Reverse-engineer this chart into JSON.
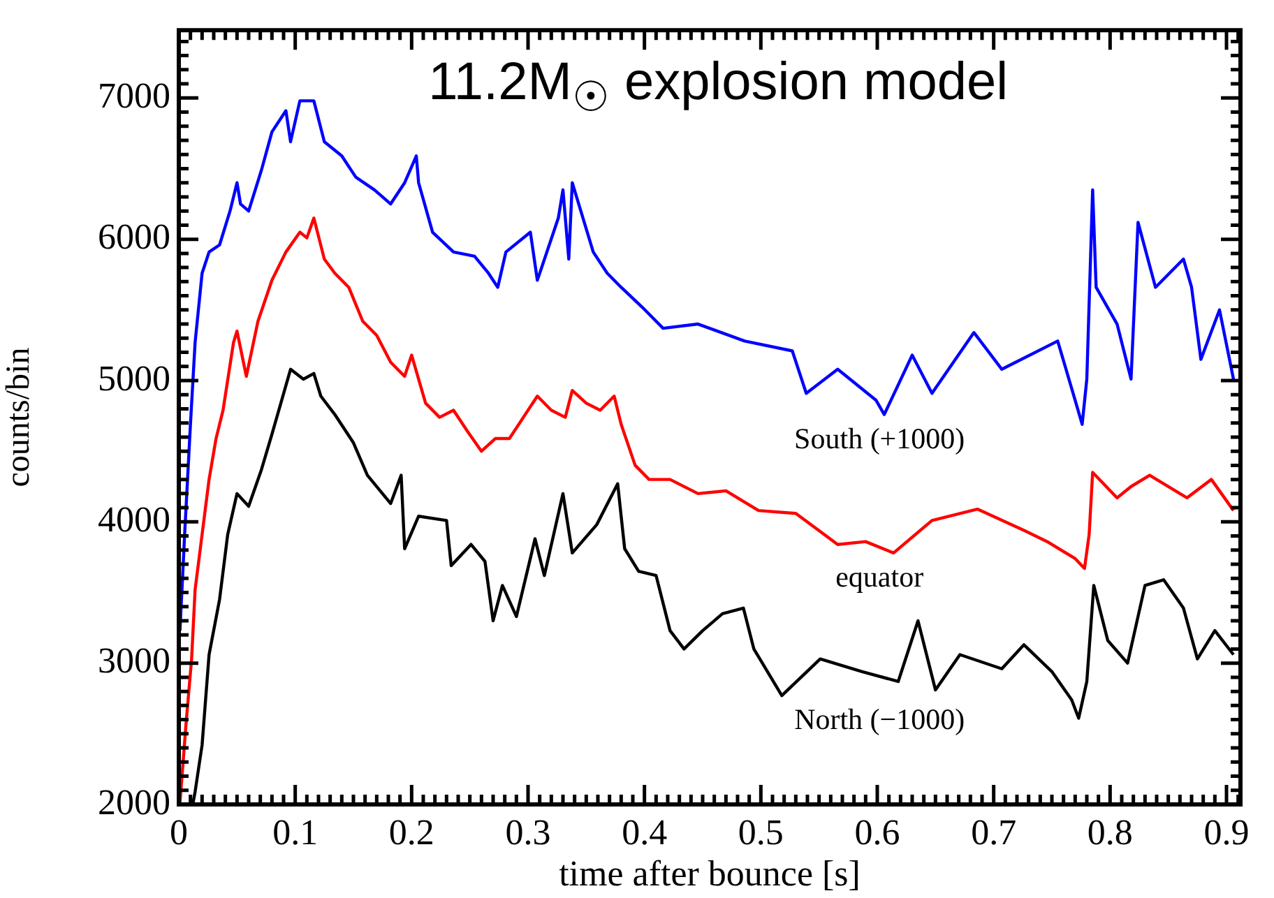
{
  "chart_data": {
    "type": "line",
    "title": "11.2M$_{☉}$ explosion model",
    "xlabel": "time after bounce [s]",
    "ylabel": "counts/bin",
    "xlim": [
      0,
      0.912
    ],
    "ylim": [
      2000,
      7480
    ],
    "xticks": [
      0,
      {
        "value": 0.01,
        "label": null
      },
      {
        "value": 0.02,
        "label": null
      },
      {
        "value": 0.03,
        "label": null
      },
      {
        "value": 0.04,
        "label": null
      },
      {
        "value": 0.05,
        "label": null
      },
      {
        "value": 0.06,
        "label": null
      },
      {
        "value": 0.07,
        "label": null
      },
      {
        "value": 0.08,
        "label": null
      },
      {
        "value": 0.09,
        "label": null
      },
      0.1,
      {
        "value": 0.11,
        "label": null
      },
      {
        "value": 0.12,
        "label": null
      },
      {
        "value": 0.13,
        "label": null
      },
      {
        "value": 0.14,
        "label": null
      },
      {
        "value": 0.15,
        "label": null
      },
      {
        "value": 0.16,
        "label": null
      },
      {
        "value": 0.17,
        "label": null
      },
      {
        "value": 0.18,
        "label": null
      },
      {
        "value": 0.19,
        "label": null
      },
      0.2,
      {
        "value": 0.21,
        "label": null
      },
      {
        "value": 0.22,
        "label": null
      },
      {
        "value": 0.23,
        "label": null
      },
      {
        "value": 0.24,
        "label": null
      },
      {
        "value": 0.25,
        "label": null
      },
      {
        "value": 0.26,
        "label": null
      },
      {
        "value": 0.27,
        "label": null
      },
      {
        "value": 0.28,
        "label": null
      },
      {
        "value": 0.29,
        "label": null
      },
      0.3,
      {
        "value": 0.31,
        "label": null
      },
      {
        "value": 0.32,
        "label": null
      },
      {
        "value": 0.33,
        "label": null
      },
      {
        "value": 0.34,
        "label": null
      },
      {
        "value": 0.35,
        "label": null
      },
      {
        "value": 0.36,
        "label": null
      },
      {
        "value": 0.37,
        "label": null
      },
      {
        "value": 0.38,
        "label": null
      },
      {
        "value": 0.39,
        "label": null
      },
      0.4,
      {
        "value": 0.41,
        "label": null
      },
      {
        "value": 0.42,
        "label": null
      },
      {
        "value": 0.43,
        "label": null
      },
      {
        "value": 0.44,
        "label": null
      },
      {
        "value": 0.45,
        "label": null
      },
      {
        "value": 0.46,
        "label": null
      },
      {
        "value": 0.47,
        "label": null
      },
      {
        "value": 0.48,
        "label": null
      },
      {
        "value": 0.49,
        "label": null
      },
      0.5,
      {
        "value": 0.51,
        "label": null
      },
      {
        "value": 0.52,
        "label": null
      },
      {
        "value": 0.53,
        "label": null
      },
      {
        "value": 0.54,
        "label": null
      },
      {
        "value": 0.55,
        "label": null
      },
      {
        "value": 0.56,
        "label": null
      },
      {
        "value": 0.57,
        "label": null
      },
      {
        "value": 0.58,
        "label": null
      },
      {
        "value": 0.59,
        "label": null
      },
      0.6,
      {
        "value": 0.61,
        "label": null
      },
      {
        "value": 0.62,
        "label": null
      },
      {
        "value": 0.63,
        "label": null
      },
      {
        "value": 0.64,
        "label": null
      },
      {
        "value": 0.65,
        "label": null
      },
      {
        "value": 0.66,
        "label": null
      },
      {
        "value": 0.67,
        "label": null
      },
      {
        "value": 0.68,
        "label": null
      },
      {
        "value": 0.69,
        "label": null
      },
      0.7,
      {
        "value": 0.71,
        "label": null
      },
      {
        "value": 0.72,
        "label": null
      },
      {
        "value": 0.73,
        "label": null
      },
      {
        "value": 0.74,
        "label": null
      },
      {
        "value": 0.75,
        "label": null
      },
      {
        "value": 0.76,
        "label": null
      },
      {
        "value": 0.77,
        "label": null
      },
      {
        "value": 0.78,
        "label": null
      },
      {
        "value": 0.79,
        "label": null
      },
      0.8,
      {
        "value": 0.81,
        "label": null
      },
      {
        "value": 0.82,
        "label": null
      },
      {
        "value": 0.83,
        "label": null
      },
      {
        "value": 0.84,
        "label": null
      },
      {
        "value": 0.85,
        "label": null
      },
      {
        "value": 0.86,
        "label": null
      },
      {
        "value": 0.87,
        "label": null
      },
      {
        "value": 0.88,
        "label": null
      },
      {
        "value": 0.89,
        "label": null
      },
      0.9,
      {
        "value": 0.91,
        "label": null
      }
    ],
    "yticks": [
      2000,
      {
        "value": 2100,
        "label": null
      },
      {
        "value": 2200,
        "label": null
      },
      {
        "value": 2300,
        "label": null
      },
      {
        "value": 2400,
        "label": null
      },
      {
        "value": 2500,
        "label": null
      },
      {
        "value": 2600,
        "label": null
      },
      {
        "value": 2700,
        "label": null
      },
      {
        "value": 2800,
        "label": null
      },
      {
        "value": 2900,
        "label": null
      },
      3000,
      {
        "value": 3100,
        "label": null
      },
      {
        "value": 3200,
        "label": null
      },
      {
        "value": 3300,
        "label": null
      },
      {
        "value": 3400,
        "label": null
      },
      {
        "value": 3500,
        "label": null
      },
      {
        "value": 3600,
        "label": null
      },
      {
        "value": 3700,
        "label": null
      },
      {
        "value": 3800,
        "label": null
      },
      {
        "value": 3900,
        "label": null
      },
      4000,
      {
        "value": 4100,
        "label": null
      },
      {
        "value": 4200,
        "label": null
      },
      {
        "value": 4300,
        "label": null
      },
      {
        "value": 4400,
        "label": null
      },
      {
        "value": 4500,
        "label": null
      },
      {
        "value": 4600,
        "label": null
      },
      {
        "value": 4700,
        "label": null
      },
      {
        "value": 4800,
        "label": null
      },
      {
        "value": 4900,
        "label": null
      },
      5000,
      {
        "value": 5100,
        "label": null
      },
      {
        "value": 5200,
        "label": null
      },
      {
        "value": 5300,
        "label": null
      },
      {
        "value": 5400,
        "label": null
      },
      {
        "value": 5500,
        "label": null
      },
      {
        "value": 5600,
        "label": null
      },
      {
        "value": 5700,
        "label": null
      },
      {
        "value": 5800,
        "label": null
      },
      {
        "value": 5900,
        "label": null
      },
      6000,
      {
        "value": 6100,
        "label": null
      },
      {
        "value": 6200,
        "label": null
      },
      {
        "value": 6300,
        "label": null
      },
      {
        "value": 6400,
        "label": null
      },
      {
        "value": 6500,
        "label": null
      },
      {
        "value": 6600,
        "label": null
      },
      {
        "value": 6700,
        "label": null
      },
      {
        "value": 6800,
        "label": null
      },
      {
        "value": 6900,
        "label": null
      },
      7000,
      {
        "value": 7100,
        "label": null
      },
      {
        "value": 7200,
        "label": null
      },
      {
        "value": 7300,
        "label": null
      },
      {
        "value": 7400,
        "label": null
      }
    ],
    "grid": false,
    "legend": false,
    "marker": "none",
    "line_style": "solid",
    "series": [
      {
        "name": "South (+1000)",
        "color": "#0000ff",
        "x": [
          0.001,
          0.005,
          0.01,
          0.014,
          0.02,
          0.026,
          0.035,
          0.044,
          0.05,
          0.053,
          0.06,
          0.071,
          0.08,
          0.092,
          0.096,
          0.104,
          0.116,
          0.125,
          0.14,
          0.152,
          0.168,
          0.182,
          0.194,
          0.204,
          0.206,
          0.218,
          0.236,
          0.254,
          0.266,
          0.274,
          0.281,
          0.302,
          0.308,
          0.326,
          0.33,
          0.335,
          0.338,
          0.356,
          0.368,
          0.38,
          0.398,
          0.416,
          0.446,
          0.486,
          0.527,
          0.539,
          0.566,
          0.599,
          0.606,
          0.63,
          0.647,
          0.683,
          0.707,
          0.755,
          0.77,
          0.776,
          0.78,
          0.785,
          0.788,
          0.806,
          0.818,
          0.824,
          0.839,
          0.863,
          0.87,
          0.878,
          0.894,
          0.906
        ],
        "values": [
          3230,
          3910,
          4690,
          5270,
          5760,
          5910,
          5960,
          6200,
          6400,
          6250,
          6200,
          6490,
          6760,
          6910,
          6690,
          6980,
          6980,
          6690,
          6590,
          6440,
          6350,
          6250,
          6400,
          6590,
          6400,
          6050,
          5910,
          5880,
          5760,
          5660,
          5910,
          6050,
          5710,
          6150,
          6350,
          5860,
          6400,
          5910,
          5760,
          5660,
          5520,
          5370,
          5400,
          5280,
          5210,
          4910,
          5080,
          4860,
          4760,
          5180,
          4910,
          5340,
          5080,
          5280,
          4860,
          4690,
          5010,
          6350,
          5660,
          5400,
          5010,
          6120,
          5660,
          5860,
          5660,
          5150,
          5500,
          5010
        ]
      },
      {
        "name": "equator",
        "color": "#ff0000",
        "x": [
          0.001,
          0.006,
          0.011,
          0.014,
          0.02,
          0.026,
          0.032,
          0.038,
          0.047,
          0.05,
          0.058,
          0.068,
          0.08,
          0.092,
          0.104,
          0.11,
          0.116,
          0.125,
          0.134,
          0.146,
          0.158,
          0.17,
          0.182,
          0.194,
          0.2,
          0.212,
          0.224,
          0.236,
          0.248,
          0.26,
          0.272,
          0.284,
          0.296,
          0.308,
          0.32,
          0.332,
          0.338,
          0.35,
          0.362,
          0.374,
          0.38,
          0.392,
          0.404,
          0.422,
          0.446,
          0.47,
          0.498,
          0.53,
          0.566,
          0.59,
          0.614,
          0.647,
          0.686,
          0.726,
          0.746,
          0.77,
          0.778,
          0.782,
          0.785,
          0.806,
          0.818,
          0.834,
          0.866,
          0.887,
          0.906
        ],
        "values": [
          2010,
          2550,
          3030,
          3520,
          3910,
          4300,
          4590,
          4790,
          5270,
          5350,
          5030,
          5420,
          5710,
          5910,
          6050,
          6010,
          6150,
          5860,
          5760,
          5660,
          5420,
          5320,
          5130,
          5030,
          5180,
          4840,
          4740,
          4790,
          4640,
          4500,
          4590,
          4590,
          4740,
          4890,
          4790,
          4740,
          4930,
          4840,
          4790,
          4890,
          4690,
          4400,
          4300,
          4300,
          4200,
          4220,
          4080,
          4060,
          3840,
          3860,
          3780,
          4010,
          4090,
          3940,
          3860,
          3740,
          3670,
          3910,
          4350,
          4170,
          4250,
          4330,
          4170,
          4300,
          4080
        ]
      },
      {
        "name": "North (−1000)",
        "color": "#000000",
        "x": [
          0.012,
          0.014,
          0.02,
          0.026,
          0.035,
          0.042,
          0.05,
          0.06,
          0.071,
          0.08,
          0.096,
          0.107,
          0.116,
          0.122,
          0.134,
          0.15,
          0.162,
          0.182,
          0.191,
          0.194,
          0.206,
          0.23,
          0.234,
          0.251,
          0.263,
          0.27,
          0.278,
          0.29,
          0.306,
          0.314,
          0.33,
          0.338,
          0.359,
          0.377,
          0.383,
          0.395,
          0.41,
          0.422,
          0.434,
          0.45,
          0.467,
          0.485,
          0.494,
          0.518,
          0.551,
          0.587,
          0.618,
          0.635,
          0.65,
          0.671,
          0.707,
          0.726,
          0.75,
          0.767,
          0.773,
          0.78,
          0.786,
          0.798,
          0.815,
          0.83,
          0.846,
          0.863,
          0.875,
          0.89,
          0.906
        ],
        "values": [
          2000,
          2090,
          2420,
          3060,
          3450,
          3910,
          4200,
          4110,
          4370,
          4620,
          5080,
          5010,
          5050,
          4890,
          4760,
          4560,
          4330,
          4130,
          4330,
          3810,
          4040,
          4010,
          3690,
          3840,
          3720,
          3300,
          3550,
          3330,
          3880,
          3620,
          4200,
          3780,
          3980,
          4270,
          3810,
          3650,
          3620,
          3230,
          3100,
          3230,
          3350,
          3390,
          3100,
          2770,
          3030,
          2940,
          2870,
          3300,
          2810,
          3060,
          2960,
          3130,
          2940,
          2740,
          2610,
          2870,
          3550,
          3160,
          3000,
          3550,
          3590,
          3390,
          3030,
          3230,
          3060
        ]
      }
    ]
  }
}
